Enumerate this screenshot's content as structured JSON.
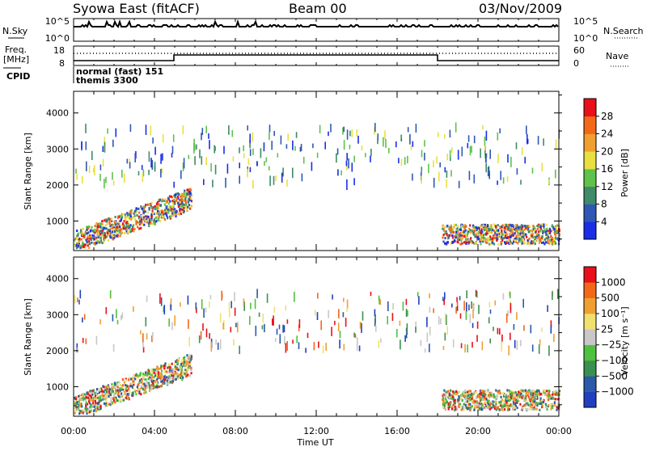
{
  "header": {
    "station": "Syowa East (fitACF)",
    "beam": "Beam 00",
    "date": "03/Nov/2009"
  },
  "top_panels": {
    "nsky_label": "N.Sky",
    "nsky_ticks": [
      "10^5",
      "10^0"
    ],
    "nsearch_label": "N.Search",
    "nsearch_ticks": [
      "10^5",
      "10^0"
    ],
    "freq_label_1": "Freq.",
    "freq_label_2": "[MHz]",
    "freq_ticks": [
      "18",
      "8"
    ],
    "nave_label": "Nave",
    "nave_ticks": [
      "60",
      "0"
    ],
    "cpid_label": "CPID",
    "cpid_lines": [
      "normal (fast) 151",
      "themis 3300"
    ]
  },
  "chart_data": [
    {
      "type": "heatmap",
      "title": "",
      "ylabel": "Slant Range [km]",
      "xlabel": "",
      "ylim": [
        180,
        4600
      ],
      "y_ticks": [
        "1000",
        "2000",
        "3000",
        "4000"
      ],
      "x_range_hours": [
        0,
        24
      ],
      "x_tick_labels": [
        "00:00",
        "04:00",
        "08:00",
        "12:00",
        "16:00",
        "20:00",
        "00:00"
      ],
      "colorbar_label": "Power [dB]",
      "colorbar_ticks": [
        "4",
        "8",
        "12",
        "16",
        "20",
        "24",
        "28"
      ],
      "colorbar_colors": [
        "#1a2ee8",
        "#2f58b4",
        "#3f8a68",
        "#5fc24a",
        "#e8e040",
        "#f0a030",
        "#f26818",
        "#e8101a"
      ],
      "echo_regions": [
        {
          "t": [
            0.0,
            5.8
          ],
          "r": [
            250,
            1900
          ],
          "note": "dense"
        },
        {
          "t": [
            18.2,
            24.0
          ],
          "r": [
            350,
            900
          ],
          "note": "dense"
        },
        {
          "t": [
            0.0,
            24.0
          ],
          "r": [
            2000,
            3600
          ],
          "note": "sparse"
        }
      ]
    },
    {
      "type": "heatmap",
      "title": "",
      "ylabel": "Slant Range [km]",
      "xlabel": "Time UT",
      "ylim": [
        180,
        4600
      ],
      "y_ticks": [
        "1000",
        "2000",
        "3000",
        "4000"
      ],
      "x_range_hours": [
        0,
        24
      ],
      "x_tick_labels": [
        "00:00",
        "04:00",
        "08:00",
        "12:00",
        "16:00",
        "20:00",
        "00:00"
      ],
      "colorbar_label": "Velocity [m s⁻¹]",
      "colorbar_ticks": [
        "1000",
        "500",
        "100",
        "25",
        "−25",
        "−100",
        "−500",
        "−1000"
      ],
      "colorbar_colors": [
        "#2040c0",
        "#2a5aa8",
        "#3a9050",
        "#50c040",
        "#c8c8c8",
        "#f0e070",
        "#f0a030",
        "#f26818",
        "#e8101a"
      ],
      "echo_regions": [
        {
          "t": [
            0.0,
            5.8
          ],
          "r": [
            250,
            1900
          ],
          "note": "dense"
        },
        {
          "t": [
            18.2,
            24.0
          ],
          "r": [
            350,
            900
          ],
          "note": "dense"
        },
        {
          "t": [
            0.0,
            24.0
          ],
          "r": [
            2000,
            3600
          ],
          "note": "sparse"
        }
      ]
    }
  ]
}
